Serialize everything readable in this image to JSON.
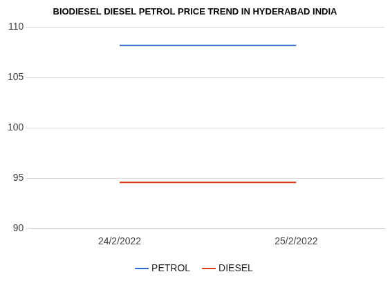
{
  "chart_data": {
    "type": "line",
    "title": "BIODIESEL DIESEL PETROL PRICE TREND IN HYDERABAD INDIA",
    "categories": [
      "24/2/2022",
      "25/2/2022"
    ],
    "series": [
      {
        "name": "PETROL",
        "color": "#3366cc",
        "values": [
          108.2,
          108.2
        ]
      },
      {
        "name": "DIESEL",
        "color": "#dc3912",
        "values": [
          94.6,
          94.6
        ]
      }
    ],
    "ylim": [
      90,
      110
    ],
    "yticks": [
      90,
      95,
      100,
      105,
      110
    ],
    "grid": true,
    "legend": "bottom"
  }
}
